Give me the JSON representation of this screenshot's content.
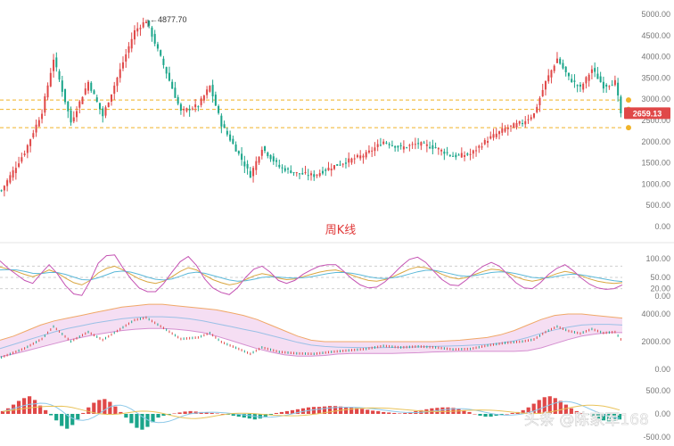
{
  "chart_caption": "周K线",
  "watermark": "头条 @陈家军168",
  "colors": {
    "up": "#e04848",
    "down": "#1aa58a",
    "level_line": "#f0b429",
    "price_tag": "#e04848",
    "k_line": "#d9a640",
    "d_line": "#5bb8d8",
    "j_line": "#c452b3",
    "band_fill": "#f3d6f0",
    "band_upper": "#f0a868",
    "band_lower": "#d58fd0",
    "band_mid": "#9ac0e6",
    "macd_dif": "#8cc8e8",
    "macd_dea": "#e9c35a"
  },
  "chart_data": [
    {
      "type": "candlestick",
      "title": "周K线",
      "y_ticks": [
        "5000.00",
        "4500.00",
        "4000.00",
        "3500.00",
        "3000.00",
        "2500.00",
        "2000.00",
        "1500.00",
        "1000.00",
        "500.00",
        "0.00"
      ],
      "ylim": [
        0,
        5000
      ],
      "peak_label": "4877.70",
      "last_price_label": "2659.13",
      "last_price": 2659.13,
      "levels": [
        2980,
        2760,
        2330
      ],
      "anchors": [
        [
          0,
          850
        ],
        [
          8,
          1750
        ],
        [
          14,
          2700
        ],
        [
          18,
          3950
        ],
        [
          24,
          2450
        ],
        [
          30,
          3400
        ],
        [
          35,
          2600
        ],
        [
          40,
          3500
        ],
        [
          46,
          4600
        ],
        [
          50,
          4850
        ],
        [
          56,
          3800
        ],
        [
          62,
          2700
        ],
        [
          68,
          2850
        ],
        [
          72,
          3300
        ],
        [
          76,
          2400
        ],
        [
          82,
          1700
        ],
        [
          86,
          1200
        ],
        [
          90,
          1850
        ],
        [
          96,
          1400
        ],
        [
          102,
          1250
        ],
        [
          108,
          1200
        ],
        [
          114,
          1400
        ],
        [
          120,
          1550
        ],
        [
          126,
          1700
        ],
        [
          132,
          2000
        ],
        [
          138,
          1850
        ],
        [
          144,
          1950
        ],
        [
          150,
          1850
        ],
        [
          156,
          1650
        ],
        [
          162,
          1700
        ],
        [
          168,
          2050
        ],
        [
          174,
          2300
        ],
        [
          180,
          2450
        ],
        [
          184,
          2650
        ],
        [
          188,
          3400
        ],
        [
          192,
          3950
        ],
        [
          196,
          3500
        ],
        [
          200,
          3250
        ],
        [
          204,
          3700
        ],
        [
          208,
          3300
        ],
        [
          212,
          3400
        ],
        [
          214,
          2659
        ]
      ]
    },
    {
      "type": "line",
      "title": "",
      "y_ticks": [
        "100.00",
        "50.00",
        "20.00",
        "0.00"
      ],
      "ylim": [
        0,
        100
      ],
      "series": [
        {
          "key": "k_line",
          "values": [
            78,
            72,
            66,
            58,
            52,
            60,
            70,
            62,
            48,
            36,
            30,
            42,
            62,
            74,
            80,
            70,
            58,
            46,
            38,
            34,
            40,
            52,
            66,
            76,
            70,
            56,
            44,
            36,
            30,
            34,
            44,
            54,
            60,
            56,
            48,
            44,
            46,
            52,
            58,
            64,
            68,
            70,
            64,
            56,
            48,
            42,
            40,
            44,
            52,
            62,
            72,
            78,
            76,
            68,
            58,
            50,
            46,
            50,
            58,
            66,
            72,
            70,
            62,
            52,
            44,
            40,
            44,
            52,
            60,
            66,
            62,
            54,
            46,
            40,
            36,
            34,
            36
          ]
        },
        {
          "key": "d_line",
          "values": [
            70,
            71,
            70,
            66,
            61,
            60,
            63,
            63,
            58,
            51,
            44,
            43,
            49,
            57,
            65,
            67,
            64,
            58,
            51,
            45,
            43,
            46,
            53,
            61,
            64,
            61,
            55,
            49,
            43,
            40,
            41,
            45,
            50,
            52,
            51,
            49,
            48,
            49,
            52,
            56,
            60,
            63,
            63,
            61,
            57,
            52,
            48,
            47,
            49,
            53,
            59,
            65,
            69,
            69,
            65,
            60,
            55,
            53,
            55,
            59,
            63,
            65,
            64,
            60,
            55,
            50,
            48,
            49,
            53,
            57,
            59,
            57,
            53,
            49,
            45,
            41,
            39
          ]
        },
        {
          "key": "j_line",
          "values": [
            94,
            74,
            58,
            42,
            34,
            60,
            84,
            60,
            28,
            6,
            2,
            40,
            88,
            108,
            110,
            76,
            46,
            22,
            12,
            12,
            34,
            64,
            92,
            106,
            82,
            46,
            22,
            10,
            4,
            22,
            50,
            72,
            80,
            64,
            42,
            34,
            42,
            58,
            70,
            80,
            84,
            84,
            66,
            46,
            30,
            22,
            24,
            38,
            58,
            80,
            98,
            104,
            90,
            66,
            44,
            30,
            28,
            44,
            64,
            80,
            90,
            80,
            58,
            36,
            22,
            20,
            36,
            58,
            74,
            84,
            68,
            48,
            32,
            22,
            18,
            20,
            30
          ]
        }
      ]
    },
    {
      "type": "line",
      "title": "",
      "y_ticks": [
        "4000.00",
        "2000.00",
        "0.00"
      ],
      "ylim": [
        0,
        4000
      ],
      "series": [
        {
          "key": "band_upper",
          "values": [
            2100,
            2400,
            2800,
            3200,
            3500,
            3700,
            3900,
            4100,
            4300,
            4500,
            4600,
            4700,
            4700,
            4600,
            4500,
            4400,
            4300,
            4100,
            3900,
            3600,
            3200,
            2800,
            2400,
            2100,
            2000,
            2000,
            2000,
            2000,
            2000,
            2000,
            2000,
            2000,
            2000,
            2050,
            2100,
            2200,
            2300,
            2500,
            2800,
            3200,
            3600,
            3900,
            4000,
            4000,
            3900,
            3800,
            3700
          ]
        },
        {
          "key": "band_mid",
          "values": [
            1500,
            1800,
            2100,
            2400,
            2700,
            2950,
            3150,
            3350,
            3500,
            3650,
            3750,
            3800,
            3800,
            3750,
            3650,
            3500,
            3300,
            3100,
            2900,
            2700,
            2450,
            2200,
            1950,
            1750,
            1650,
            1600,
            1580,
            1570,
            1570,
            1580,
            1600,
            1620,
            1650,
            1680,
            1700,
            1750,
            1800,
            1900,
            2050,
            2300,
            2600,
            2850,
            3050,
            3200,
            3250,
            3250,
            3200
          ]
        },
        {
          "key": "band_lower",
          "values": [
            900,
            1100,
            1350,
            1600,
            1850,
            2100,
            2300,
            2500,
            2650,
            2800,
            2900,
            2950,
            2950,
            2900,
            2800,
            2650,
            2400,
            2100,
            1800,
            1500,
            1250,
            1050,
            950,
            950,
            1000,
            1100,
            1150,
            1150,
            1150,
            1150,
            1180,
            1200,
            1250,
            1280,
            1300,
            1300,
            1300,
            1300,
            1300,
            1350,
            1550,
            1850,
            2150,
            2400,
            2550,
            2650,
            2650
          ]
        }
      ]
    },
    {
      "type": "bar",
      "title": "",
      "y_ticks": [
        "500.00",
        "0.00",
        "-500.00"
      ],
      "ylim": [
        -500,
        500
      ],
      "values": [
        60,
        120,
        200,
        280,
        340,
        380,
        300,
        180,
        80,
        -30,
        -140,
        -260,
        -320,
        -240,
        -120,
        20,
        140,
        240,
        300,
        320,
        260,
        160,
        40,
        -80,
        -200,
        -300,
        -340,
        -280,
        -180,
        -80,
        -40,
        -20,
        10,
        30,
        50,
        60,
        50,
        40,
        30,
        20,
        10,
        0,
        -20,
        -40,
        -60,
        -80,
        -100,
        -120,
        -100,
        -60,
        -20,
        20,
        40,
        60,
        80,
        100,
        120,
        140,
        150,
        150,
        160,
        170,
        170,
        160,
        150,
        140,
        130,
        110,
        90,
        70,
        60,
        40,
        30,
        20,
        10,
        20,
        40,
        60,
        80,
        100,
        120,
        130,
        140,
        140,
        130,
        110,
        80,
        40,
        0,
        -40,
        -60,
        -60,
        -40,
        -20,
        0,
        20,
        40,
        80,
        140,
        220,
        300,
        360,
        380,
        340,
        280,
        200,
        120,
        60,
        20,
        -20,
        -60,
        -100,
        -140,
        -160,
        -150,
        -120
      ]
    }
  ]
}
